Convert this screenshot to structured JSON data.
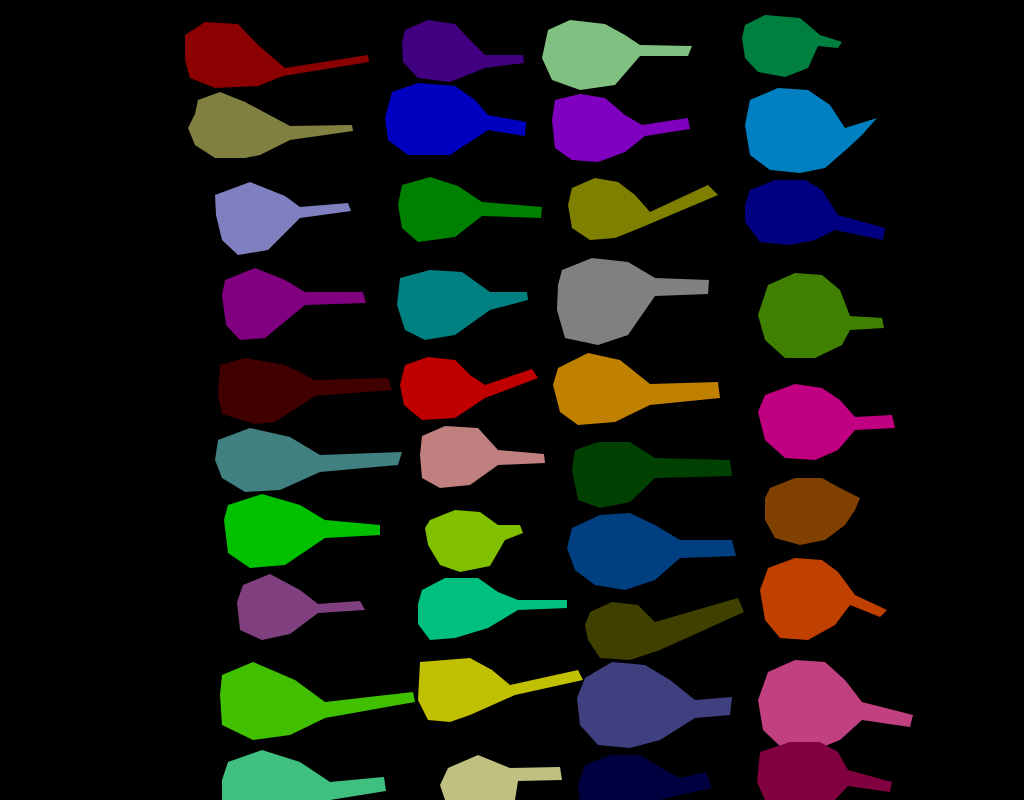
{
  "background": "#000000",
  "grid": {
    "columns": 4,
    "rows": 10
  },
  "shapes": [
    {
      "id": "c1-r1",
      "color": "#8b0000"
    },
    {
      "id": "c1-r2",
      "color": "#808040"
    },
    {
      "id": "c1-r3",
      "color": "#8080c0"
    },
    {
      "id": "c1-r4",
      "color": "#800080"
    },
    {
      "id": "c1-r5",
      "color": "#400000"
    },
    {
      "id": "c1-r6",
      "color": "#408080"
    },
    {
      "id": "c1-r7",
      "color": "#00c000"
    },
    {
      "id": "c1-r8",
      "color": "#804080"
    },
    {
      "id": "c1-r9",
      "color": "#40c000"
    },
    {
      "id": "c1-r10",
      "color": "#40c080"
    },
    {
      "id": "c2-r1",
      "color": "#400080"
    },
    {
      "id": "c2-r2",
      "color": "#0000c0"
    },
    {
      "id": "c2-r3",
      "color": "#008000"
    },
    {
      "id": "c2-r4",
      "color": "#008080"
    },
    {
      "id": "c2-r5",
      "color": "#c00000"
    },
    {
      "id": "c2-r6",
      "color": "#c08080"
    },
    {
      "id": "c2-r7",
      "color": "#80c000"
    },
    {
      "id": "c2-r8",
      "color": "#00c080"
    },
    {
      "id": "c2-r9",
      "color": "#c0c000"
    },
    {
      "id": "c2-r10",
      "color": "#c0c080"
    },
    {
      "id": "c3-r1",
      "color": "#80c080"
    },
    {
      "id": "c3-r2",
      "color": "#8000c0"
    },
    {
      "id": "c3-r3",
      "color": "#808000"
    },
    {
      "id": "c3-r4",
      "color": "#808080"
    },
    {
      "id": "c3-r5",
      "color": "#c08000"
    },
    {
      "id": "c3-r6",
      "color": "#004000"
    },
    {
      "id": "c3-r7",
      "color": "#004080"
    },
    {
      "id": "c3-r8",
      "color": "#404000"
    },
    {
      "id": "c3-r9",
      "color": "#404080"
    },
    {
      "id": "c3-r10",
      "color": "#000040"
    },
    {
      "id": "c4-r1",
      "color": "#008040"
    },
    {
      "id": "c4-r2",
      "color": "#0080c0"
    },
    {
      "id": "c4-r3",
      "color": "#000080"
    },
    {
      "id": "c4-r4",
      "color": "#408000"
    },
    {
      "id": "c4-r5",
      "color": "#c00080"
    },
    {
      "id": "c4-r6",
      "color": "#804000"
    },
    {
      "id": "c4-r7",
      "color": "#c04000"
    },
    {
      "id": "c4-r8",
      "color": "#c04080"
    },
    {
      "id": "c4-r9",
      "color": "#800040"
    }
  ]
}
